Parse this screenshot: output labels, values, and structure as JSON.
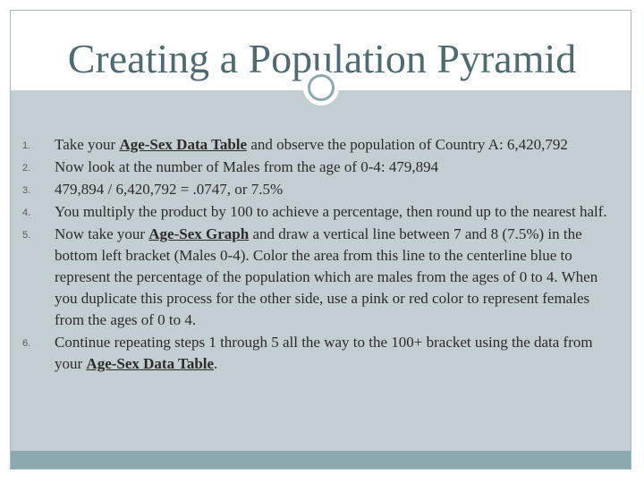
{
  "slide": {
    "title": "Creating a Population Pyramid",
    "items": [
      {
        "num": "1.",
        "before": "Take your ",
        "link": "Age-Sex Data Table",
        "after": " and observe the population of Country A: 6,420,792"
      },
      {
        "num": "2.",
        "text": "Now look at the number of Males from the age of 0-4: 479,894"
      },
      {
        "num": "3.",
        "text": "479,894 / 6,420,792 = .0747, or 7.5%"
      },
      {
        "num": "4.",
        "text": "You multiply the product by 100 to achieve a percentage, then round up to the nearest half."
      },
      {
        "num": "5.",
        "before": "Now take your ",
        "link": "Age-Sex Graph",
        "after": " and draw a vertical line between 7 and 8 (7.5%) in the bottom left bracket (Males 0-4). Color the area from this line to the centerline blue to represent the percentage of the population which are males from the ages of 0 to 4. When you duplicate this process for the other side, use a pink or red color to represent females from the ages of 0 to 4."
      },
      {
        "num": "6.",
        "before": "Continue repeating steps 1 through 5 all the way to the 100+ bracket using the data from your ",
        "link": "Age-Sex Data Table",
        "after": "."
      }
    ]
  },
  "colors": {
    "title": "#4e6b70",
    "body_background": "#c3ced3",
    "accent_bar": "#8aa8ad"
  }
}
